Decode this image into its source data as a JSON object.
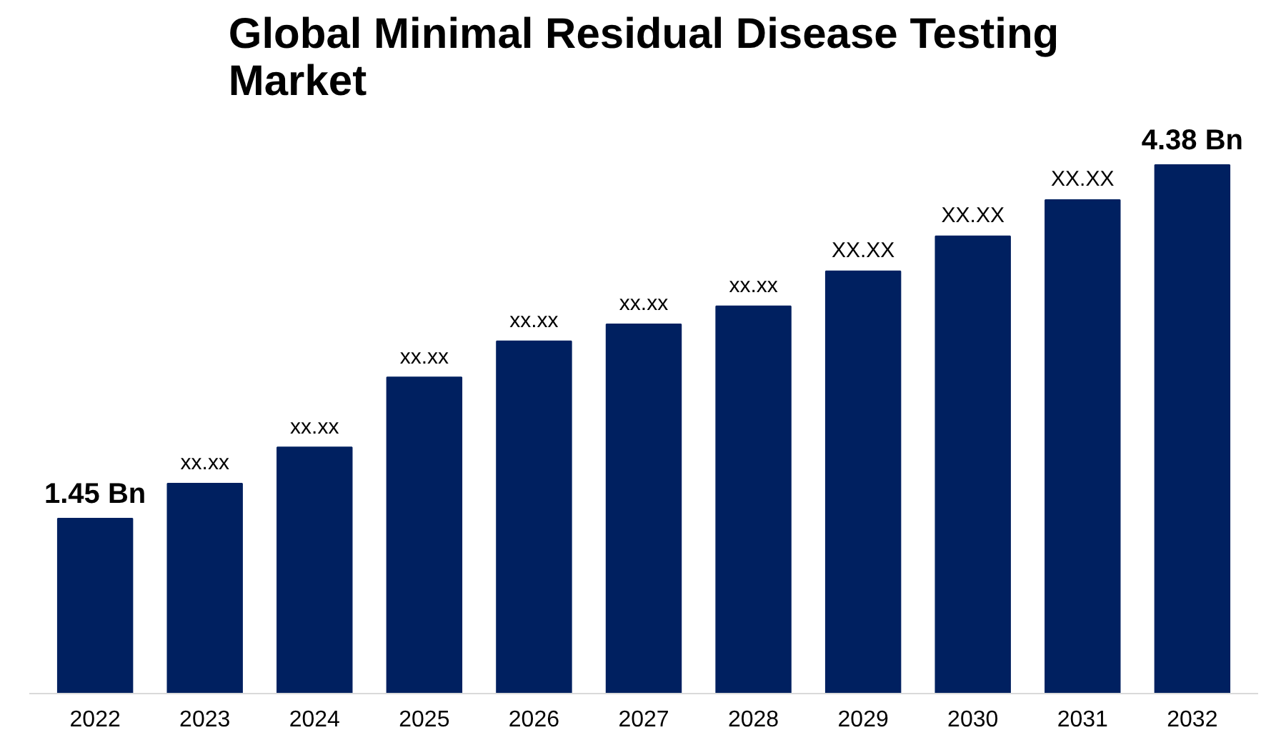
{
  "chart_data": {
    "type": "bar",
    "title": "Global Minimal Residual Disease Testing Market",
    "color": "#002060",
    "grid": false,
    "tick_labels": "x",
    "categories": [
      "2022",
      "2023",
      "2024",
      "2025",
      "2026",
      "2027",
      "2028",
      "2029",
      "2030",
      "2031",
      "2032"
    ],
    "values": [
      1.45,
      1.74,
      2.04,
      2.62,
      2.92,
      3.06,
      3.21,
      3.5,
      3.79,
      4.09,
      4.38
    ],
    "value_labels": [
      "1.45 Bn",
      "xx.xx",
      "xx.xx",
      "xx.xx",
      "xx.xx",
      "xx.xx",
      "xx.xx",
      "XX.XX",
      "XX.XX",
      "XX.XX",
      "4.38 Bn"
    ]
  }
}
